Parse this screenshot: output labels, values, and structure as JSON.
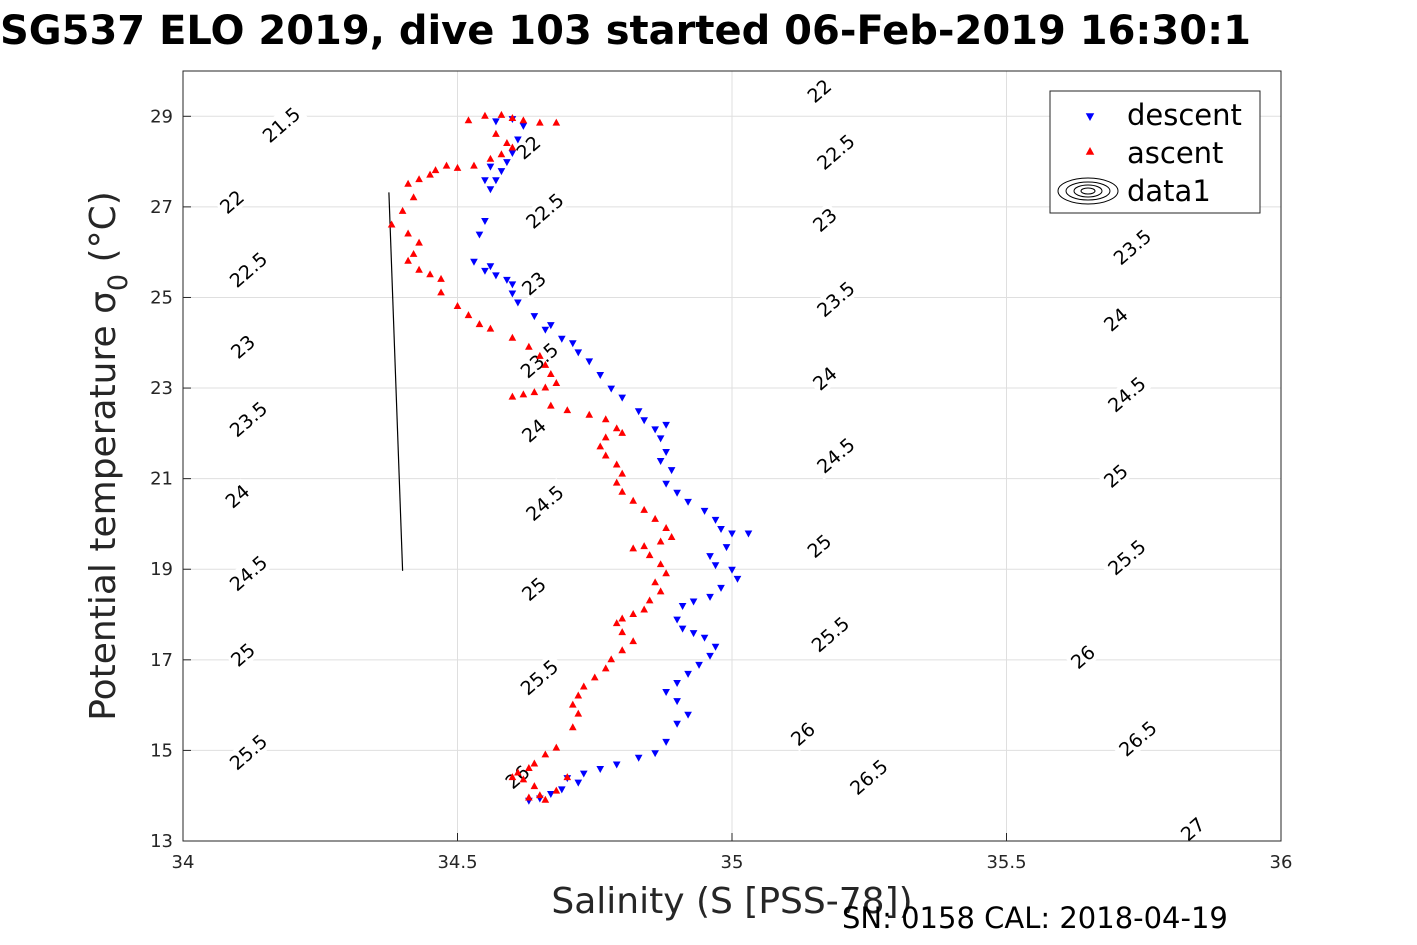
{
  "chart_data": {
    "type": "scatter",
    "title": "SG537 ELO 2019, dive 103 started 06-Feb-2019 16:30:1",
    "xlabel": "Salinity (S [PSS-78])",
    "ylabel": "Potential temperature σ",
    "ylabel_sub": "0",
    "ylabel_unit": " (°C)",
    "footer": "SN: 0158  CAL: 2018-04-19",
    "xlim": [
      34,
      36
    ],
    "ylim": [
      13,
      30
    ],
    "xticks": [
      34,
      34.5,
      35,
      35.5,
      36
    ],
    "xtick_labels": [
      "34",
      "34.5",
      "35",
      "35.5",
      "36"
    ],
    "yticks": [
      13,
      15,
      17,
      19,
      21,
      23,
      25,
      27,
      29
    ],
    "ytick_labels": [
      "13",
      "15",
      "17",
      "19",
      "21",
      "23",
      "25",
      "27",
      "29"
    ],
    "grid": true,
    "legend_position": "top-right",
    "legend": [
      "descent",
      "ascent",
      "data1"
    ],
    "colors": {
      "descent": "#0000ff",
      "ascent": "#ff0000",
      "contour": "#000000",
      "grid": "#dfdfdf",
      "axis": "#262626"
    },
    "contours": {
      "levels": [
        21.5,
        22,
        22.5,
        23,
        23.5,
        24,
        24.5,
        25,
        25.5,
        26,
        26.5,
        27
      ],
      "labels": [
        {
          "text": "21.5",
          "x": 34.18,
          "y": 28.8
        },
        {
          "text": "22",
          "x": 34.63,
          "y": 28.3
        },
        {
          "text": "22",
          "x": 35.16,
          "y": 29.55
        },
        {
          "text": "22",
          "x": 34.09,
          "y": 27.1
        },
        {
          "text": "22.5",
          "x": 34.66,
          "y": 26.9
        },
        {
          "text": "22.5",
          "x": 35.19,
          "y": 28.2
        },
        {
          "text": "22.5",
          "x": 34.12,
          "y": 25.6
        },
        {
          "text": "23",
          "x": 34.64,
          "y": 25.3
        },
        {
          "text": "23",
          "x": 35.17,
          "y": 26.7
        },
        {
          "text": "23",
          "x": 34.11,
          "y": 23.9
        },
        {
          "text": "23.5",
          "x": 34.65,
          "y": 23.6
        },
        {
          "text": "23.5",
          "x": 35.19,
          "y": 24.95
        },
        {
          "text": "23.5",
          "x": 35.73,
          "y": 26.1
        },
        {
          "text": "23.5",
          "x": 34.12,
          "y": 22.3
        },
        {
          "text": "24",
          "x": 34.64,
          "y": 22.05
        },
        {
          "text": "24",
          "x": 35.17,
          "y": 23.2
        },
        {
          "text": "24",
          "x": 35.7,
          "y": 24.5
        },
        {
          "text": "24",
          "x": 34.1,
          "y": 20.6
        },
        {
          "text": "24.5",
          "x": 34.66,
          "y": 20.45
        },
        {
          "text": "24.5",
          "x": 35.19,
          "y": 21.5
        },
        {
          "text": "24.5",
          "x": 35.72,
          "y": 22.85
        },
        {
          "text": "24.5",
          "x": 34.12,
          "y": 18.9
        },
        {
          "text": "25",
          "x": 34.64,
          "y": 18.55
        },
        {
          "text": "25",
          "x": 35.16,
          "y": 19.5
        },
        {
          "text": "25",
          "x": 35.7,
          "y": 21.05
        },
        {
          "text": "25",
          "x": 34.11,
          "y": 17.1
        },
        {
          "text": "25.5",
          "x": 34.65,
          "y": 16.6
        },
        {
          "text": "25.5",
          "x": 35.18,
          "y": 17.55
        },
        {
          "text": "25.5",
          "x": 35.72,
          "y": 19.25
        },
        {
          "text": "25.5",
          "x": 34.12,
          "y": 14.95
        },
        {
          "text": "26",
          "x": 34.61,
          "y": 14.4
        },
        {
          "text": "26",
          "x": 35.13,
          "y": 15.35
        },
        {
          "text": "26",
          "x": 35.64,
          "y": 17.05
        },
        {
          "text": "26.5",
          "x": 35.25,
          "y": 14.4
        },
        {
          "text": "26.5",
          "x": 35.74,
          "y": 15.25
        },
        {
          "text": "27",
          "x": 35.84,
          "y": 13.25
        }
      ]
    },
    "series": [
      {
        "name": "descent",
        "marker": "triangle-down",
        "points": [
          [
            34.57,
            28.9
          ],
          [
            34.6,
            28.95
          ],
          [
            34.62,
            28.8
          ],
          [
            34.61,
            28.5
          ],
          [
            34.6,
            28.2
          ],
          [
            34.59,
            28.0
          ],
          [
            34.58,
            27.8
          ],
          [
            34.57,
            27.6
          ],
          [
            34.56,
            27.4
          ],
          [
            34.55,
            27.6
          ],
          [
            34.56,
            27.9
          ],
          [
            34.55,
            26.7
          ],
          [
            34.54,
            26.4
          ],
          [
            34.53,
            25.8
          ],
          [
            34.55,
            25.6
          ],
          [
            34.56,
            25.7
          ],
          [
            34.57,
            25.5
          ],
          [
            34.59,
            25.4
          ],
          [
            34.6,
            25.3
          ],
          [
            34.6,
            25.1
          ],
          [
            34.61,
            24.9
          ],
          [
            34.64,
            24.6
          ],
          [
            34.66,
            24.3
          ],
          [
            34.67,
            24.4
          ],
          [
            34.69,
            24.1
          ],
          [
            34.71,
            24.0
          ],
          [
            34.72,
            23.8
          ],
          [
            34.74,
            23.6
          ],
          [
            34.76,
            23.3
          ],
          [
            34.78,
            23.0
          ],
          [
            34.8,
            22.8
          ],
          [
            34.83,
            22.5
          ],
          [
            34.84,
            22.3
          ],
          [
            34.86,
            22.1
          ],
          [
            34.88,
            22.2
          ],
          [
            34.87,
            21.9
          ],
          [
            34.88,
            21.6
          ],
          [
            34.87,
            21.4
          ],
          [
            34.89,
            21.2
          ],
          [
            34.88,
            20.9
          ],
          [
            34.9,
            20.7
          ],
          [
            34.92,
            20.5
          ],
          [
            34.95,
            20.3
          ],
          [
            34.97,
            20.1
          ],
          [
            34.98,
            19.9
          ],
          [
            35.0,
            19.8
          ],
          [
            35.03,
            19.8
          ],
          [
            34.99,
            19.5
          ],
          [
            34.96,
            19.3
          ],
          [
            34.97,
            19.1
          ],
          [
            35.0,
            19.0
          ],
          [
            35.01,
            18.8
          ],
          [
            34.98,
            18.6
          ],
          [
            34.96,
            18.4
          ],
          [
            34.93,
            18.3
          ],
          [
            34.91,
            18.2
          ],
          [
            34.9,
            17.9
          ],
          [
            34.91,
            17.7
          ],
          [
            34.93,
            17.6
          ],
          [
            34.95,
            17.5
          ],
          [
            34.97,
            17.3
          ],
          [
            34.96,
            17.1
          ],
          [
            34.94,
            16.9
          ],
          [
            34.92,
            16.7
          ],
          [
            34.9,
            16.5
          ],
          [
            34.88,
            16.3
          ],
          [
            34.9,
            16.1
          ],
          [
            34.92,
            15.8
          ],
          [
            34.9,
            15.6
          ],
          [
            34.88,
            15.2
          ],
          [
            34.86,
            14.95
          ],
          [
            34.83,
            14.85
          ],
          [
            34.79,
            14.7
          ],
          [
            34.76,
            14.6
          ],
          [
            34.73,
            14.5
          ],
          [
            34.7,
            14.4
          ],
          [
            34.72,
            14.3
          ],
          [
            34.69,
            14.15
          ],
          [
            34.67,
            14.05
          ],
          [
            34.65,
            13.95
          ],
          [
            34.63,
            13.9
          ]
        ]
      },
      {
        "name": "ascent",
        "marker": "triangle-up",
        "points": [
          [
            34.52,
            28.9
          ],
          [
            34.55,
            29.0
          ],
          [
            34.58,
            29.02
          ],
          [
            34.6,
            28.95
          ],
          [
            34.62,
            28.9
          ],
          [
            34.65,
            28.85
          ],
          [
            34.68,
            28.85
          ],
          [
            34.57,
            28.6
          ],
          [
            34.59,
            28.4
          ],
          [
            34.6,
            28.3
          ],
          [
            34.58,
            28.15
          ],
          [
            34.56,
            28.05
          ],
          [
            34.53,
            27.9
          ],
          [
            34.5,
            27.85
          ],
          [
            34.48,
            27.9
          ],
          [
            34.46,
            27.8
          ],
          [
            34.45,
            27.7
          ],
          [
            34.43,
            27.6
          ],
          [
            34.41,
            27.5
          ],
          [
            34.42,
            27.2
          ],
          [
            34.4,
            26.9
          ],
          [
            34.38,
            26.6
          ],
          [
            34.41,
            26.4
          ],
          [
            34.43,
            26.2
          ],
          [
            34.42,
            25.95
          ],
          [
            34.41,
            25.8
          ],
          [
            34.43,
            25.6
          ],
          [
            34.45,
            25.5
          ],
          [
            34.47,
            25.4
          ],
          [
            34.47,
            25.1
          ],
          [
            34.5,
            24.8
          ],
          [
            34.52,
            24.6
          ],
          [
            34.54,
            24.4
          ],
          [
            34.56,
            24.3
          ],
          [
            34.6,
            24.1
          ],
          [
            34.63,
            23.9
          ],
          [
            34.65,
            23.7
          ],
          [
            34.66,
            23.5
          ],
          [
            34.67,
            23.3
          ],
          [
            34.68,
            23.1
          ],
          [
            34.66,
            23.0
          ],
          [
            34.64,
            22.9
          ],
          [
            34.62,
            22.85
          ],
          [
            34.6,
            22.8
          ],
          [
            34.67,
            22.6
          ],
          [
            34.7,
            22.5
          ],
          [
            34.74,
            22.4
          ],
          [
            34.77,
            22.3
          ],
          [
            34.79,
            22.1
          ],
          [
            34.8,
            22.0
          ],
          [
            34.77,
            21.9
          ],
          [
            34.76,
            21.7
          ],
          [
            34.77,
            21.5
          ],
          [
            34.79,
            21.3
          ],
          [
            34.8,
            21.1
          ],
          [
            34.79,
            20.9
          ],
          [
            34.8,
            20.7
          ],
          [
            34.82,
            20.5
          ],
          [
            34.84,
            20.3
          ],
          [
            34.86,
            20.1
          ],
          [
            34.88,
            19.9
          ],
          [
            34.89,
            19.7
          ],
          [
            34.87,
            19.6
          ],
          [
            34.84,
            19.5
          ],
          [
            34.82,
            19.45
          ],
          [
            34.85,
            19.3
          ],
          [
            34.87,
            19.1
          ],
          [
            34.88,
            18.9
          ],
          [
            34.86,
            18.7
          ],
          [
            34.87,
            18.5
          ],
          [
            34.85,
            18.3
          ],
          [
            34.84,
            18.1
          ],
          [
            34.82,
            18.0
          ],
          [
            34.8,
            17.9
          ],
          [
            34.79,
            17.8
          ],
          [
            34.8,
            17.6
          ],
          [
            34.82,
            17.4
          ],
          [
            34.8,
            17.2
          ],
          [
            34.78,
            17.0
          ],
          [
            34.77,
            16.8
          ],
          [
            34.75,
            16.6
          ],
          [
            34.73,
            16.4
          ],
          [
            34.72,
            16.2
          ],
          [
            34.71,
            16.0
          ],
          [
            34.72,
            15.8
          ],
          [
            34.71,
            15.5
          ],
          [
            34.68,
            15.05
          ],
          [
            34.66,
            14.9
          ],
          [
            34.64,
            14.7
          ],
          [
            34.63,
            14.6
          ],
          [
            34.61,
            14.5
          ],
          [
            34.6,
            14.4
          ],
          [
            34.62,
            14.35
          ],
          [
            34.64,
            14.2
          ],
          [
            34.65,
            14.0
          ],
          [
            34.63,
            13.95
          ],
          [
            34.66,
            13.9
          ],
          [
            34.68,
            14.1
          ],
          [
            34.7,
            14.4
          ]
        ]
      }
    ]
  }
}
